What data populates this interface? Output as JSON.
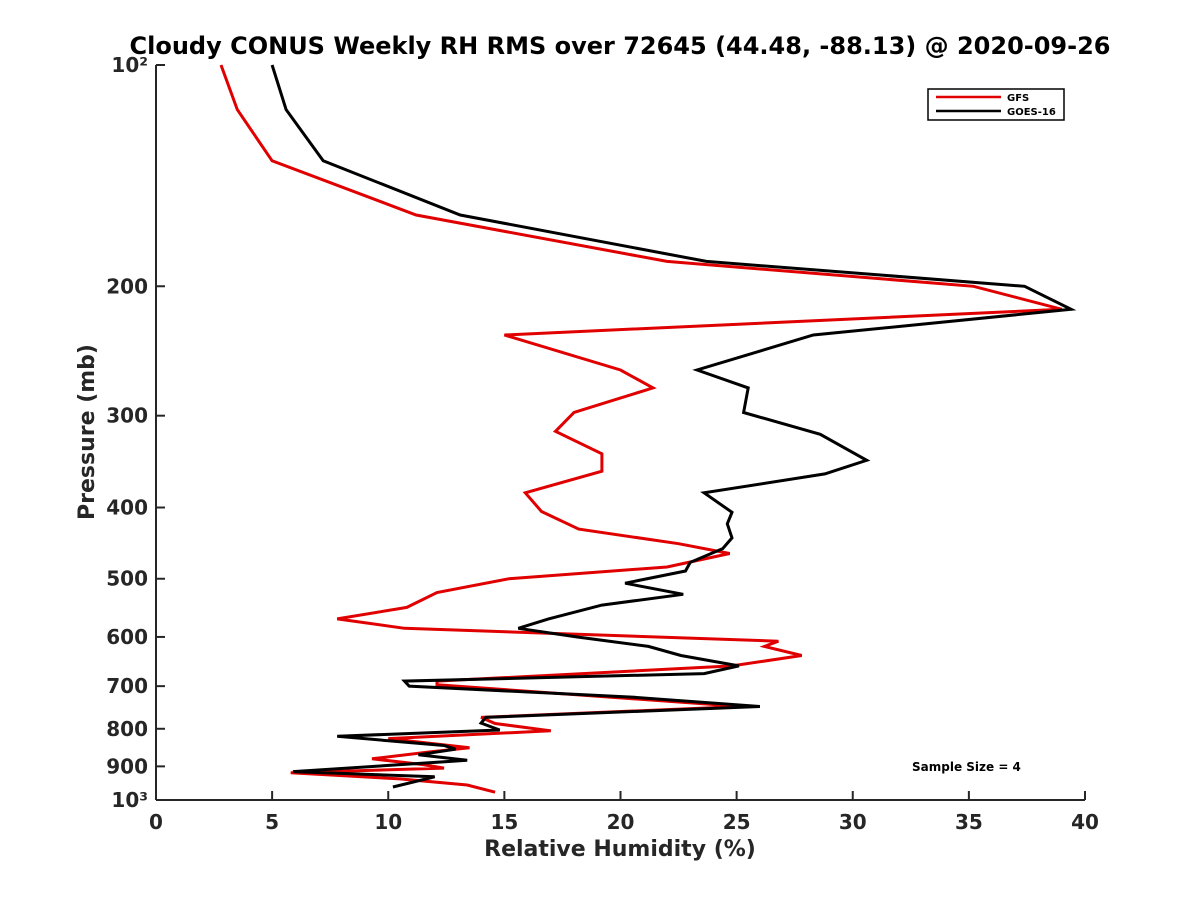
{
  "chart_data": {
    "type": "line",
    "title": "Cloudy CONUS Weekly RH RMS over 72645 (44.48, -88.13) @ 2020-09-26",
    "xlabel": "Relative Humidity (%)",
    "ylabel": "Pressure (mb)",
    "xlim": [
      0,
      40
    ],
    "ylim": [
      100,
      1000
    ],
    "y_scale": "log",
    "y_reversed": true,
    "grid": false,
    "legend_position": "top-right",
    "x_ticks": [
      0,
      5,
      10,
      15,
      20,
      25,
      30,
      35,
      40
    ],
    "y_ticks": [
      100,
      200,
      300,
      400,
      500,
      600,
      700,
      800,
      900,
      1000
    ],
    "y_tick_labels": [
      "10²",
      "200",
      "300",
      "400",
      "500",
      "600",
      "700",
      "800",
      "900",
      "10³"
    ],
    "annotation": "Sample Size = 4",
    "series": [
      {
        "name": "GFS",
        "color": "#e00000",
        "points": [
          [
            2.8,
            100
          ],
          [
            3.5,
            115
          ],
          [
            5.0,
            135
          ],
          [
            11.2,
            160
          ],
          [
            22.0,
            185
          ],
          [
            35.2,
            200
          ],
          [
            39.0,
            215
          ],
          [
            15.0,
            233
          ],
          [
            20.0,
            260
          ],
          [
            21.4,
            275
          ],
          [
            18.0,
            297
          ],
          [
            17.2,
            315
          ],
          [
            19.2,
            338
          ],
          [
            19.2,
            357
          ],
          [
            15.9,
            382
          ],
          [
            16.6,
            405
          ],
          [
            18.2,
            428
          ],
          [
            22.5,
            448
          ],
          [
            24.7,
            462
          ],
          [
            22.0,
            482
          ],
          [
            15.2,
            500
          ],
          [
            12.1,
            522
          ],
          [
            10.8,
            547
          ],
          [
            7.8,
            567
          ],
          [
            10.7,
            584
          ],
          [
            26.8,
            608
          ],
          [
            26.2,
            618
          ],
          [
            27.8,
            636
          ],
          [
            24.8,
            657
          ],
          [
            12.1,
            689
          ],
          [
            12.1,
            697
          ],
          [
            25.2,
            746
          ],
          [
            14.0,
            772
          ],
          [
            14.6,
            787
          ],
          [
            17.0,
            805
          ],
          [
            10.0,
            825
          ],
          [
            13.5,
            849
          ],
          [
            11.8,
            860
          ],
          [
            9.3,
            879
          ],
          [
            11.5,
            895
          ],
          [
            12.4,
            905
          ],
          [
            5.8,
            918
          ],
          [
            10.5,
            936
          ],
          [
            13.4,
            954
          ],
          [
            14.6,
            976
          ]
        ]
      },
      {
        "name": "GOES-16",
        "color": "#000000",
        "points": [
          [
            5.0,
            100
          ],
          [
            5.6,
            115
          ],
          [
            7.2,
            135
          ],
          [
            13.1,
            160
          ],
          [
            23.7,
            185
          ],
          [
            37.4,
            200
          ],
          [
            39.4,
            215
          ],
          [
            28.3,
            233
          ],
          [
            23.3,
            260
          ],
          [
            25.5,
            275
          ],
          [
            25.3,
            297
          ],
          [
            28.6,
            318
          ],
          [
            30.6,
            345
          ],
          [
            28.8,
            360
          ],
          [
            23.6,
            382
          ],
          [
            24.8,
            406
          ],
          [
            24.6,
            421
          ],
          [
            24.8,
            440
          ],
          [
            24.4,
            455
          ],
          [
            23.0,
            475
          ],
          [
            22.8,
            488
          ],
          [
            20.2,
            507
          ],
          [
            22.7,
            525
          ],
          [
            19.2,
            543
          ],
          [
            16.9,
            567
          ],
          [
            15.6,
            584
          ],
          [
            18.1,
            600
          ],
          [
            21.2,
            618
          ],
          [
            22.6,
            636
          ],
          [
            25.1,
            657
          ],
          [
            23.6,
            673
          ],
          [
            10.7,
            689
          ],
          [
            10.9,
            700
          ],
          [
            20.6,
            725
          ],
          [
            26.0,
            746
          ],
          [
            14.2,
            772
          ],
          [
            14.0,
            786
          ],
          [
            14.8,
            803
          ],
          [
            7.8,
            819
          ],
          [
            12.4,
            843
          ],
          [
            12.9,
            853
          ],
          [
            11.3,
            868
          ],
          [
            13.4,
            883
          ],
          [
            5.9,
            915
          ],
          [
            12.0,
            930
          ],
          [
            10.2,
            960
          ]
        ]
      }
    ]
  }
}
